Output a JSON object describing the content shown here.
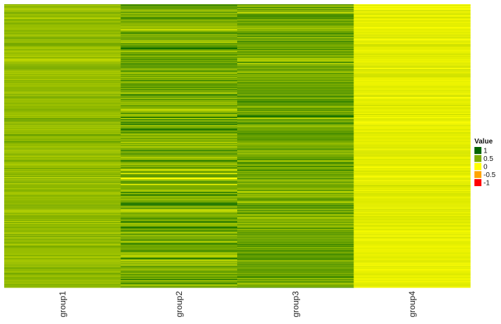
{
  "chart_data": {
    "type": "heatmap",
    "title": "",
    "xlabel": "",
    "ylabel": "",
    "categories": [
      "group1",
      "group2",
      "group3",
      "group4"
    ],
    "row_count": 400,
    "column_mean_values": [
      0.42,
      0.52,
      0.55,
      0.1
    ],
    "column_value_spread": [
      0.12,
      0.35,
      0.25,
      0.08
    ],
    "value_range": [
      -1,
      1
    ],
    "grid": false,
    "legend": {
      "title": "Value",
      "placement": "right",
      "items": [
        {
          "label": "1",
          "value": 1,
          "color": "#006400"
        },
        {
          "label": "0.5",
          "value": 0.5,
          "color": "#7fae00"
        },
        {
          "label": "0",
          "value": 0,
          "color": "#ffff00"
        },
        {
          "label": "-0.5",
          "value": -0.5,
          "color": "#ffa500"
        },
        {
          "label": "-1",
          "value": -1,
          "color": "#ff0000"
        }
      ]
    }
  }
}
